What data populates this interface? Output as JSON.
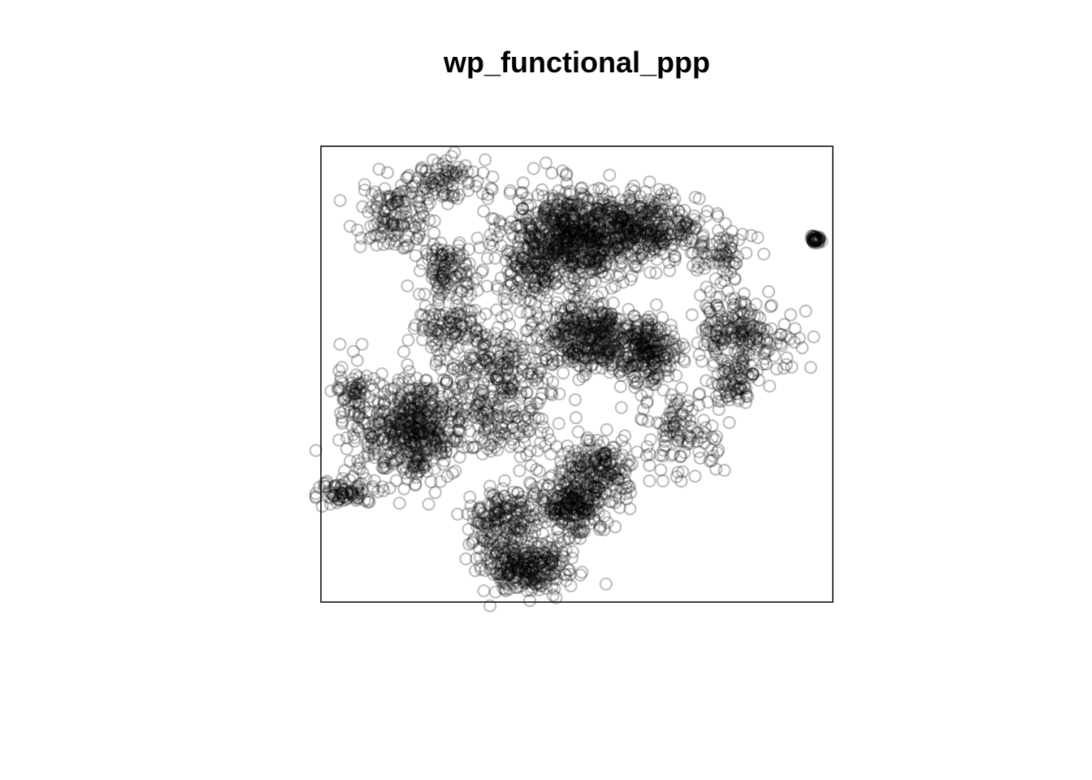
{
  "chart_data": {
    "type": "scatter",
    "title": "wp_functional_ppp",
    "xlabel": "",
    "ylabel": "",
    "grid": false,
    "marker": "open-circle",
    "marker_color": "#000000",
    "marker_alpha": 0.25,
    "xlim": [
      0,
      1
    ],
    "ylim": [
      0,
      1
    ],
    "clusters": [
      {
        "cx": 0.48,
        "cy": 0.8,
        "rx": 0.1,
        "ry": 0.09,
        "n": 700
      },
      {
        "cx": 0.62,
        "cy": 0.82,
        "rx": 0.1,
        "ry": 0.06,
        "n": 450
      },
      {
        "cx": 0.18,
        "cy": 0.38,
        "rx": 0.09,
        "ry": 0.09,
        "n": 550
      },
      {
        "cx": 0.52,
        "cy": 0.58,
        "rx": 0.08,
        "ry": 0.07,
        "n": 400
      },
      {
        "cx": 0.64,
        "cy": 0.55,
        "rx": 0.05,
        "ry": 0.06,
        "n": 250
      },
      {
        "cx": 0.49,
        "cy": 0.22,
        "rx": 0.06,
        "ry": 0.06,
        "n": 300
      },
      {
        "cx": 0.4,
        "cy": 0.08,
        "rx": 0.07,
        "ry": 0.05,
        "n": 300
      },
      {
        "cx": 0.35,
        "cy": 0.18,
        "rx": 0.05,
        "ry": 0.06,
        "n": 180
      },
      {
        "cx": 0.8,
        "cy": 0.6,
        "rx": 0.05,
        "ry": 0.06,
        "n": 150
      },
      {
        "cx": 0.81,
        "cy": 0.48,
        "rx": 0.04,
        "ry": 0.04,
        "n": 80
      },
      {
        "cx": 0.55,
        "cy": 0.3,
        "rx": 0.06,
        "ry": 0.05,
        "n": 160
      },
      {
        "cx": 0.14,
        "cy": 0.85,
        "rx": 0.06,
        "ry": 0.06,
        "n": 130
      },
      {
        "cx": 0.24,
        "cy": 0.93,
        "rx": 0.06,
        "ry": 0.04,
        "n": 100
      },
      {
        "cx": 0.25,
        "cy": 0.73,
        "rx": 0.05,
        "ry": 0.05,
        "n": 120
      },
      {
        "cx": 0.05,
        "cy": 0.24,
        "rx": 0.05,
        "ry": 0.02,
        "n": 80
      },
      {
        "cx": 0.06,
        "cy": 0.45,
        "rx": 0.03,
        "ry": 0.07,
        "n": 70
      },
      {
        "cx": 0.35,
        "cy": 0.52,
        "rx": 0.1,
        "ry": 0.08,
        "n": 200
      },
      {
        "cx": 0.35,
        "cy": 0.4,
        "rx": 0.08,
        "ry": 0.07,
        "n": 150
      },
      {
        "cx": 0.7,
        "cy": 0.38,
        "rx": 0.07,
        "ry": 0.08,
        "n": 120
      },
      {
        "cx": 0.88,
        "cy": 0.58,
        "rx": 0.06,
        "ry": 0.06,
        "n": 60
      },
      {
        "cx": 0.967,
        "cy": 0.795,
        "rx": 0.008,
        "ry": 0.008,
        "n": 40
      },
      {
        "cx": 0.4,
        "cy": 0.7,
        "rx": 0.05,
        "ry": 0.06,
        "n": 90
      },
      {
        "cx": 0.78,
        "cy": 0.76,
        "rx": 0.05,
        "ry": 0.05,
        "n": 70
      },
      {
        "cx": 0.26,
        "cy": 0.6,
        "rx": 0.06,
        "ry": 0.05,
        "n": 110
      }
    ]
  }
}
